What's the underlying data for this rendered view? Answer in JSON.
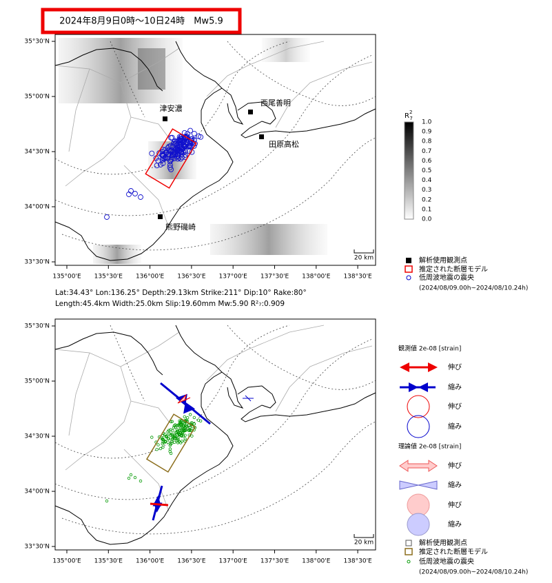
{
  "title": "2024年8月9日0時～10日24時　Mw5.9",
  "top_map": {
    "lat_labels": [
      "35°30'N",
      "35°00'N",
      "34°30'N",
      "34°00'N",
      "33°30'N"
    ],
    "lon_labels": [
      "135°00'E",
      "135°30'E",
      "136°00'E",
      "136°30'E",
      "137°00'E",
      "137°30'E",
      "138°00'E",
      "138°30'E"
    ],
    "stations": [
      "津安濃",
      "西尾善明",
      "田原高松",
      "熊野磯崎"
    ],
    "colorbar": {
      "title": "R",
      "title_sup": "2",
      "title_sub": "7",
      "ticks": [
        "1.0",
        "0.9",
        "0.8",
        "0.7",
        "0.6",
        "0.5",
        "0.4",
        "0.3",
        "0.2",
        "0.1",
        "0.0"
      ]
    },
    "scale": "20 km",
    "legend": [
      "解析使用観測点",
      "推定された断層モデル",
      "低周波地震の震央"
    ],
    "period": "(2024/08/09.00h~2024/08/10.24h)"
  },
  "params": [
    "Lat:34.43° Lon:136.25° Depth:29.13km Strike:211° Dip:10° Rake:80°",
    "Length:45.4km Width:25.0km Slip:19.60mm Mw:5.90 R²₇:0.909"
  ],
  "bottom_map": {
    "lat_labels": [
      "35°30'N",
      "35°00'N",
      "34°30'N",
      "34°00'N",
      "33°30'N"
    ],
    "lon_labels": [
      "135°00'E",
      "135°30'E",
      "136°00'E",
      "136°30'E",
      "137°00'E",
      "137°30'E",
      "138°00'E",
      "138°30'E"
    ],
    "scale": "20 km",
    "observed": {
      "title": "観測値 2e-08 [strain]",
      "items": [
        "伸び",
        "縮み",
        "伸び",
        "縮み"
      ]
    },
    "theoretical": {
      "title": "理論値 2e-08 [strain]",
      "items": [
        "伸び",
        "縮み",
        "伸び",
        "縮み"
      ]
    },
    "legend": [
      "解析使用観測点",
      "推定された断層モデル",
      "低周波地震の震央"
    ],
    "period": "(2024/08/09.00h~2024/08/10.24h)"
  }
}
